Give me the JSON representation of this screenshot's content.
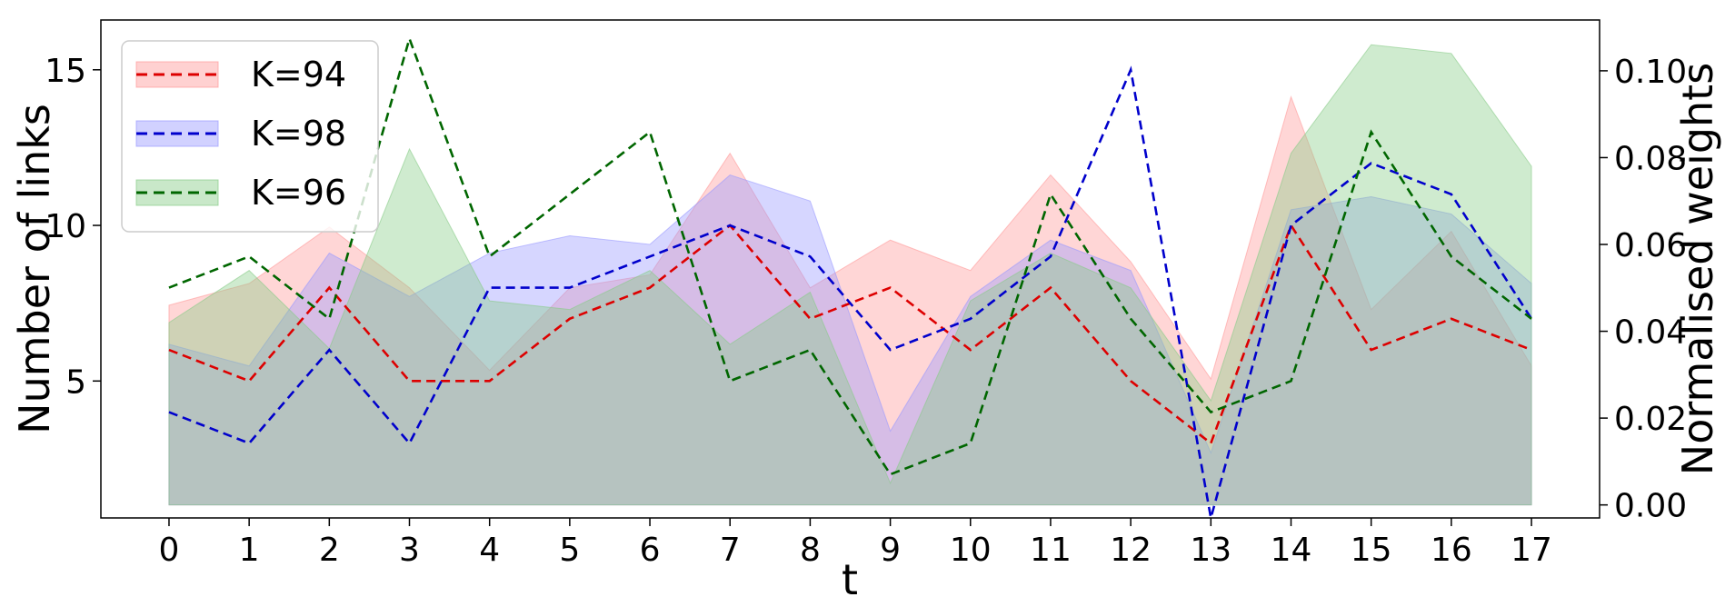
{
  "chart_data": {
    "type": "line",
    "xlabel": "t",
    "ylabel": "Number of links",
    "y2label": "Normalised weights",
    "x": [
      0,
      1,
      2,
      3,
      4,
      5,
      6,
      7,
      8,
      9,
      10,
      11,
      12,
      13,
      14,
      15,
      16,
      17
    ],
    "xlim": [
      -0.85,
      17.85
    ],
    "ylim": [
      0.6,
      16.6
    ],
    "y2lim": [
      -0.003,
      0.1117
    ],
    "yticks": [
      5,
      10,
      15
    ],
    "y2ticks": [
      "0.00",
      "0.02",
      "0.04",
      "0.06",
      "0.08",
      "0.10"
    ],
    "legend_position": "upper-left",
    "grid": false,
    "series": [
      {
        "name": "K=94",
        "color": "#dd0000",
        "fill": "#ff9999",
        "links": [
          6,
          5,
          8,
          5,
          5,
          7,
          8,
          10,
          7,
          8,
          6,
          8,
          5,
          3,
          10,
          6,
          7,
          6
        ],
        "weights": [
          0.046,
          0.051,
          0.064,
          0.05,
          0.031,
          0.05,
          0.053,
          0.081,
          0.05,
          0.061,
          0.054,
          0.076,
          0.056,
          0.029,
          0.094,
          0.045,
          0.063,
          0.032
        ]
      },
      {
        "name": "K=98",
        "color": "#0000cc",
        "fill": "#9999ff",
        "links": [
          4,
          3,
          6,
          3,
          8,
          8,
          9,
          10,
          9,
          6,
          7,
          9,
          15,
          0.6,
          10,
          12,
          11,
          7
        ],
        "weights": [
          0.037,
          0.032,
          0.058,
          0.048,
          0.058,
          0.062,
          0.06,
          0.076,
          0.07,
          0.017,
          0.048,
          0.061,
          0.054,
          0.012,
          0.068,
          0.071,
          0.067,
          0.051
        ]
      },
      {
        "name": "K=96",
        "color": "#006600",
        "fill": "#88cc88",
        "links": [
          8,
          9,
          7,
          16,
          9,
          11,
          13,
          5,
          6,
          2,
          3,
          11,
          7,
          4,
          5,
          13,
          9,
          7
        ],
        "weights": [
          0.042,
          0.054,
          0.036,
          0.082,
          0.047,
          0.045,
          0.054,
          0.037,
          0.049,
          0.005,
          0.047,
          0.058,
          0.05,
          0.024,
          0.081,
          0.106,
          0.104,
          0.078
        ]
      }
    ]
  }
}
